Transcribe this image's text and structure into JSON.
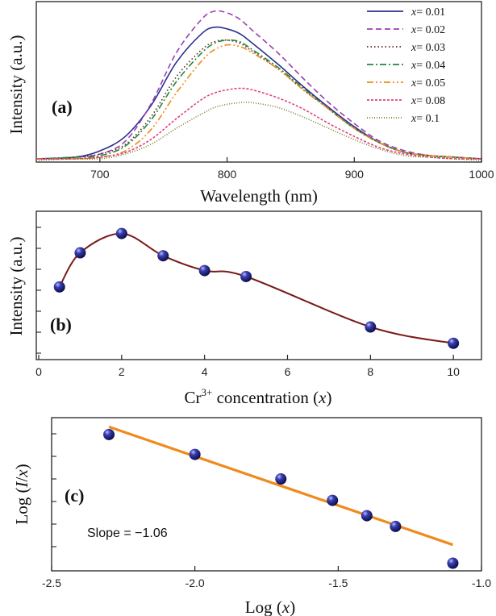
{
  "chart_data": [
    {
      "type": "line",
      "panel_label": "(a)",
      "xlabel": "Wavelength (nm)",
      "ylabel": "Intensity (a.u.)",
      "xlim": [
        650,
        1000
      ],
      "ylim": [
        0,
        1.0
      ],
      "xticks": [
        700,
        800,
        900,
        1000
      ],
      "yticks_labeled": false,
      "legend_position": "top-right",
      "series": [
        {
          "name": "x= 0.01",
          "legend_var": "x",
          "legend_value": "= 0.01",
          "color": "#2b2f8f",
          "dash": "",
          "x": [
            650,
            680,
            700,
            720,
            740,
            760,
            780,
            790,
            800,
            810,
            820,
            840,
            860,
            880,
            900,
            920,
            940,
            960,
            980,
            1000
          ],
          "y": [
            0.02,
            0.03,
            0.07,
            0.16,
            0.35,
            0.62,
            0.8,
            0.84,
            0.83,
            0.8,
            0.74,
            0.61,
            0.47,
            0.34,
            0.22,
            0.12,
            0.06,
            0.04,
            0.03,
            0.02
          ]
        },
        {
          "name": "x= 0.02",
          "legend_var": "x",
          "legend_value": "= 0.02",
          "color": "#9b3fb5",
          "dash": "7,4",
          "x": [
            650,
            680,
            700,
            720,
            740,
            760,
            780,
            790,
            800,
            810,
            820,
            840,
            860,
            880,
            900,
            920,
            940,
            960,
            980,
            1000
          ],
          "y": [
            0.02,
            0.03,
            0.05,
            0.13,
            0.36,
            0.68,
            0.89,
            0.94,
            0.93,
            0.89,
            0.82,
            0.68,
            0.52,
            0.37,
            0.24,
            0.13,
            0.07,
            0.04,
            0.03,
            0.02
          ]
        },
        {
          "name": "x= 0.03",
          "legend_var": "x",
          "legend_value": "= 0.03",
          "color": "#6b1f1f",
          "dash": "1.5,3",
          "x": [
            650,
            680,
            700,
            720,
            740,
            760,
            780,
            790,
            800,
            810,
            820,
            840,
            860,
            880,
            900,
            920,
            940,
            960,
            980,
            1000
          ],
          "y": [
            0.02,
            0.03,
            0.05,
            0.11,
            0.28,
            0.53,
            0.7,
            0.75,
            0.76,
            0.74,
            0.69,
            0.58,
            0.45,
            0.33,
            0.21,
            0.12,
            0.06,
            0.04,
            0.03,
            0.02
          ]
        },
        {
          "name": "x= 0.04",
          "legend_var": "x",
          "legend_value": "= 0.04",
          "color": "#1f8a3a",
          "dash": "8,3,2,3",
          "x": [
            650,
            680,
            700,
            720,
            740,
            760,
            780,
            790,
            800,
            810,
            820,
            840,
            860,
            880,
            900,
            920,
            940,
            960,
            980,
            1000
          ],
          "y": [
            0.02,
            0.03,
            0.04,
            0.1,
            0.26,
            0.5,
            0.68,
            0.74,
            0.76,
            0.75,
            0.7,
            0.59,
            0.46,
            0.33,
            0.21,
            0.12,
            0.06,
            0.04,
            0.03,
            0.02
          ]
        },
        {
          "name": "x= 0.05",
          "legend_var": "x",
          "legend_value": "= 0.05",
          "color": "#f08a1c",
          "dash": "8,3,2,3,2,3",
          "x": [
            650,
            680,
            700,
            720,
            740,
            760,
            780,
            790,
            800,
            810,
            820,
            840,
            860,
            880,
            900,
            920,
            940,
            960,
            980,
            1000
          ],
          "y": [
            0.02,
            0.02,
            0.03,
            0.07,
            0.2,
            0.43,
            0.63,
            0.7,
            0.73,
            0.72,
            0.68,
            0.58,
            0.45,
            0.33,
            0.21,
            0.12,
            0.06,
            0.04,
            0.03,
            0.02
          ]
        },
        {
          "name": "x= 0.08",
          "legend_var": "x",
          "legend_value": "= 0.08",
          "color": "#e0407a",
          "dash": "3,2",
          "x": [
            650,
            680,
            700,
            720,
            740,
            760,
            780,
            790,
            800,
            810,
            820,
            840,
            860,
            880,
            900,
            920,
            940,
            960,
            980,
            1000
          ],
          "y": [
            0.02,
            0.02,
            0.03,
            0.06,
            0.14,
            0.27,
            0.39,
            0.43,
            0.45,
            0.46,
            0.45,
            0.4,
            0.33,
            0.24,
            0.16,
            0.09,
            0.05,
            0.03,
            0.02,
            0.02
          ]
        },
        {
          "name": "x= 0.1",
          "legend_var": "x",
          "legend_value": "= 0.1",
          "color": "#7a7a2a",
          "dash": "1,2",
          "x": [
            650,
            680,
            700,
            720,
            740,
            760,
            780,
            790,
            800,
            810,
            820,
            840,
            860,
            880,
            900,
            920,
            940,
            960,
            980,
            1000
          ],
          "y": [
            0.01,
            0.02,
            0.02,
            0.05,
            0.11,
            0.21,
            0.3,
            0.34,
            0.36,
            0.37,
            0.37,
            0.34,
            0.28,
            0.21,
            0.14,
            0.08,
            0.04,
            0.03,
            0.02,
            0.01
          ]
        }
      ]
    },
    {
      "type": "scatter",
      "panel_label": "(b)",
      "xlabel_main": "Cr",
      "xlabel_sup": "3+",
      "xlabel_rest": " concentration (",
      "xlabel_var": "x",
      "xlabel_end": ")",
      "ylabel": "Intensity (a.u.)",
      "xlim": [
        0,
        10.6
      ],
      "ylim": [
        0,
        1.0
      ],
      "xticks": [
        0,
        2,
        4,
        6,
        8,
        10
      ],
      "yticks_labeled": false,
      "curve_color": "#7a1a1a",
      "marker_color": "#2a2a8a",
      "points": {
        "x": [
          0.5,
          1,
          2,
          3,
          4,
          5,
          8,
          10
        ],
        "y": [
          0.49,
          0.72,
          0.85,
          0.7,
          0.6,
          0.56,
          0.22,
          0.11
        ]
      }
    },
    {
      "type": "scatter",
      "panel_label": "(c)",
      "xlabel": "Log (x)",
      "ylabel": "Log (I/x)",
      "xlim": [
        -2.5,
        -1.0
      ],
      "ylim": [
        0,
        1.0
      ],
      "xticks": [
        -2.5,
        -2.0,
        -1.5,
        -1.0
      ],
      "xtick_labels": [
        "-2.5",
        "-2.0",
        "-1.5",
        "-1.0"
      ],
      "yticks_labeled": false,
      "annotation": "Slope = −1.06",
      "fit_color": "#f08a1c",
      "marker_color": "#2a2a8a",
      "points": {
        "x": [
          -2.3,
          -2.0,
          -1.7,
          -1.52,
          -1.4,
          -1.3,
          -1.1
        ],
        "y": [
          0.89,
          0.76,
          0.6,
          0.46,
          0.36,
          0.29,
          0.05
        ]
      },
      "fit_line": {
        "x": [
          -2.3,
          -1.1
        ],
        "y": [
          0.94,
          0.17
        ]
      }
    }
  ]
}
